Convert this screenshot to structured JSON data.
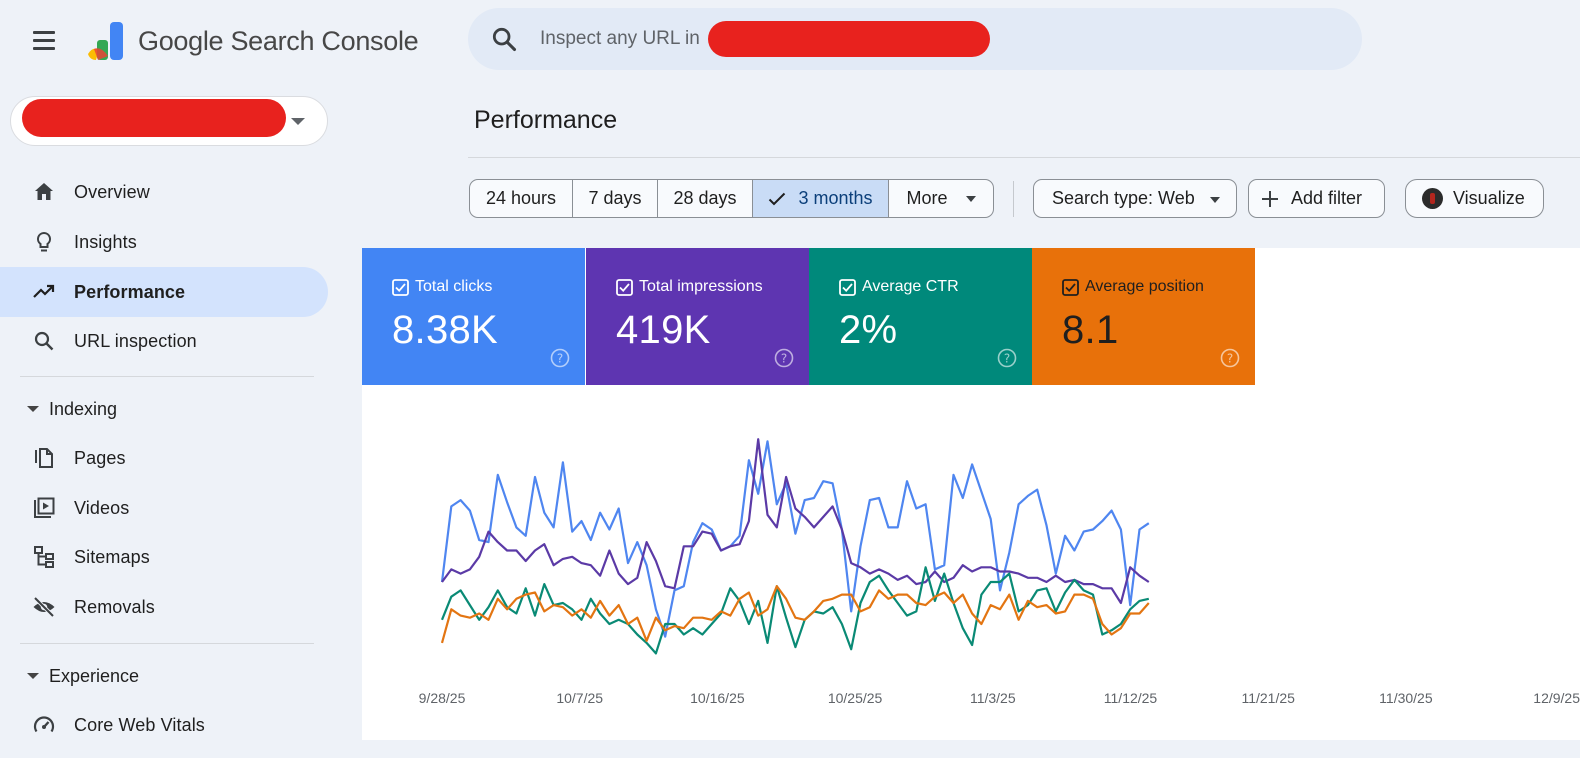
{
  "header": {
    "brand_google": "Google",
    "brand_product": "Search Console",
    "search_placeholder": "Inspect any URL in"
  },
  "sidebar": {
    "items": [
      {
        "label": "Overview",
        "icon": "home-icon"
      },
      {
        "label": "Insights",
        "icon": "lightbulb-icon"
      },
      {
        "label": "Performance",
        "icon": "trending-up-icon",
        "active": true
      },
      {
        "label": "URL inspection",
        "icon": "search-icon"
      }
    ],
    "indexing_label": "Indexing",
    "indexing_items": [
      {
        "label": "Pages",
        "icon": "pages-icon"
      },
      {
        "label": "Videos",
        "icon": "video-icon"
      },
      {
        "label": "Sitemaps",
        "icon": "sitemap-icon"
      },
      {
        "label": "Removals",
        "icon": "eye-off-icon"
      }
    ],
    "experience_label": "Experience",
    "experience_items": [
      {
        "label": "Core Web Vitals",
        "icon": "speed-gauge-icon"
      }
    ]
  },
  "main": {
    "title": "Performance",
    "date_ranges": [
      "24 hours",
      "7 days",
      "28 days",
      "3 months",
      "More"
    ],
    "selected_range": "3 months",
    "search_type_label": "Search type: Web",
    "add_filter_label": "Add filter",
    "visualize_label": "Visualize"
  },
  "metrics": [
    {
      "label": "Total clicks",
      "value": "8.38K",
      "checked": true,
      "color": "#4285f4"
    },
    {
      "label": "Total impressions",
      "value": "419K",
      "checked": true,
      "color": "#5e35b1"
    },
    {
      "label": "Average CTR",
      "value": "2%",
      "checked": true,
      "color": "#00897b"
    },
    {
      "label": "Average position",
      "value": "8.1",
      "checked": true,
      "color": "#e8710a"
    }
  ],
  "chart_data": {
    "type": "line",
    "x_tick_labels": [
      "9/28/25",
      "10/7/25",
      "10/16/25",
      "10/25/25",
      "11/3/25",
      "11/12/25",
      "11/21/25",
      "11/30/25",
      "12/9/25"
    ],
    "x_range": [
      "9/28/25",
      "12/11/25"
    ],
    "grid": false,
    "legend": "none",
    "y_axis_shown": false,
    "series": [
      {
        "name": "Total clicks",
        "color": "#4f86f0",
        "values": [
          0.3,
          0.66,
          0.69,
          0.64,
          0.5,
          0.49,
          0.81,
          0.68,
          0.56,
          0.52,
          0.8,
          0.63,
          0.56,
          0.87,
          0.54,
          0.59,
          0.5,
          0.63,
          0.55,
          0.65,
          0.39,
          0.49,
          0.38,
          0.17,
          0.04,
          0.26,
          0.28,
          0.49,
          0.58,
          0.55,
          0.45,
          0.47,
          0.52,
          0.88,
          0.72,
          0.97,
          0.67,
          0.77,
          0.53,
          0.69,
          0.7,
          0.78,
          0.77,
          0.55,
          0.16,
          0.47,
          0.69,
          0.7,
          0.56,
          0.56,
          0.78,
          0.65,
          0.67,
          0.36,
          0.38,
          0.81,
          0.7,
          0.86,
          0.73,
          0.6,
          0.26,
          0.44,
          0.67,
          0.71,
          0.74,
          0.57,
          0.34,
          0.52,
          0.45,
          0.54,
          0.55,
          0.59,
          0.64,
          0.55,
          0.19,
          0.55,
          0.58
        ]
      },
      {
        "name": "Total impressions",
        "color": "#5b3aa6",
        "values": [
          0.3,
          0.36,
          0.34,
          0.36,
          0.42,
          0.54,
          0.49,
          0.45,
          0.45,
          0.4,
          0.45,
          0.48,
          0.38,
          0.41,
          0.42,
          0.39,
          0.38,
          0.33,
          0.45,
          0.34,
          0.29,
          0.32,
          0.49,
          0.4,
          0.28,
          0.27,
          0.47,
          0.47,
          0.54,
          0.53,
          0.45,
          0.47,
          0.48,
          0.59,
          0.98,
          0.62,
          0.56,
          0.8,
          0.65,
          0.61,
          0.56,
          0.61,
          0.66,
          0.55,
          0.39,
          0.37,
          0.34,
          0.36,
          0.34,
          0.31,
          0.33,
          0.29,
          0.3,
          0.35,
          0.3,
          0.32,
          0.38,
          0.35,
          0.37,
          0.37,
          0.35,
          0.35,
          0.34,
          0.32,
          0.32,
          0.3,
          0.33,
          0.3,
          0.31,
          0.29,
          0.29,
          0.27,
          0.27,
          0.2,
          0.37,
          0.33,
          0.3
        ]
      },
      {
        "name": "Average CTR",
        "color": "#0a8a75",
        "values": [
          0.12,
          0.23,
          0.26,
          0.19,
          0.12,
          0.18,
          0.26,
          0.18,
          0.15,
          0.27,
          0.14,
          0.29,
          0.19,
          0.2,
          0.17,
          0.12,
          0.22,
          0.15,
          0.1,
          0.12,
          0.1,
          0.05,
          0.01,
          -0.04,
          0.1,
          0.1,
          0.05,
          0.08,
          0.05,
          0.1,
          0.15,
          0.27,
          0.21,
          0.1,
          0.21,
          0.01,
          0.28,
          0.13,
          -0.01,
          0.12,
          0.16,
          0.15,
          0.18,
          0.1,
          -0.02,
          0.2,
          0.3,
          0.33,
          0.26,
          0.2,
          0.14,
          0.16,
          0.37,
          0.21,
          0.34,
          0.2,
          0.08,
          0.0,
          0.24,
          0.3,
          0.3,
          0.34,
          0.16,
          0.19,
          0.26,
          0.27,
          0.16,
          0.25,
          0.31,
          0.26,
          0.24,
          0.05,
          0.07,
          0.1,
          0.17,
          0.21,
          0.22
        ]
      },
      {
        "name": "Average position",
        "color": "#e37512",
        "values": [
          0.01,
          0.17,
          0.14,
          0.13,
          0.15,
          0.12,
          0.22,
          0.17,
          0.22,
          0.24,
          0.25,
          0.16,
          0.19,
          0.18,
          0.14,
          0.17,
          0.13,
          0.21,
          0.14,
          0.19,
          0.1,
          0.13,
          0.02,
          0.13,
          0.07,
          0.09,
          0.08,
          0.13,
          0.13,
          0.12,
          0.16,
          0.14,
          0.22,
          0.25,
          0.14,
          0.17,
          0.28,
          0.22,
          0.13,
          0.12,
          0.16,
          0.21,
          0.22,
          0.24,
          0.24,
          0.16,
          0.18,
          0.26,
          0.22,
          0.24,
          0.24,
          0.2,
          0.19,
          0.23,
          0.25,
          0.2,
          0.24,
          0.15,
          0.1,
          0.19,
          0.17,
          0.24,
          0.12,
          0.21,
          0.18,
          0.19,
          0.15,
          0.16,
          0.24,
          0.24,
          0.22,
          0.1,
          0.05,
          0.08,
          0.15,
          0.15,
          0.2
        ]
      }
    ]
  }
}
